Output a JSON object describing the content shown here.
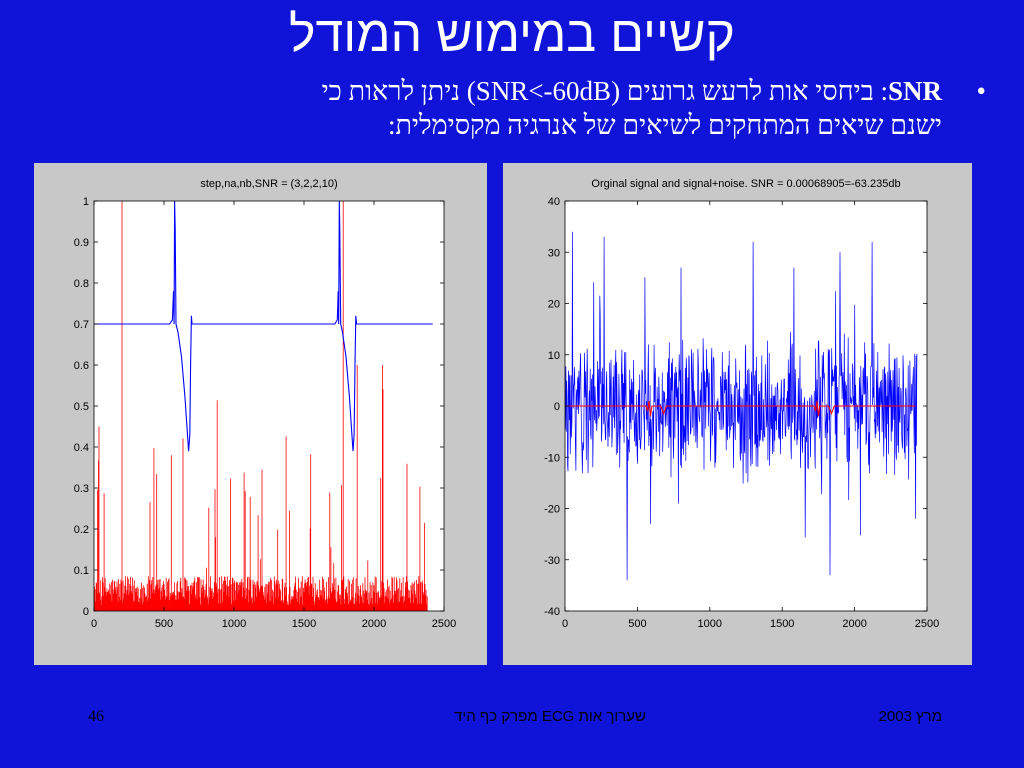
{
  "slide": {
    "title": "קשיים במימוש המודל",
    "bullet": {
      "symbol": "•",
      "term": "SNR",
      "line1_rest": ": ביחסי אות לרעש גרועים (SNR<-60dB) ניתן לראות כי",
      "line2": "ישנם שיאים המתחקים לשיאים של אנרגיה מקסימלית:"
    },
    "footer": {
      "page_number": "46",
      "center_text": "שערוך אות ECG מפרק כף היד",
      "date": "מרץ 2003"
    },
    "colors": {
      "background": "#0f14d8",
      "text": "#ffffff",
      "red": "#ff0000",
      "blue": "#0000ff",
      "panel": "#c8c8c8"
    }
  },
  "chart_data": [
    {
      "type": "line",
      "title": "step,na,nb,SNR = (3,2,2,10)",
      "xlabel": "",
      "ylabel": "",
      "xlim": [
        0,
        2500
      ],
      "ylim": [
        0,
        1
      ],
      "xticks": [
        0,
        500,
        1000,
        1500,
        2000,
        2500
      ],
      "yticks": [
        0,
        0.1,
        0.2,
        0.3,
        0.4,
        0.5,
        0.6,
        0.7,
        0.8,
        0.9,
        1
      ],
      "ytick_labels": [
        "0",
        "0.1",
        "0.2",
        "0.3",
        "0.4",
        "0.5",
        "0.6",
        "0.7",
        "0.8",
        "0.9",
        "1"
      ],
      "grid": false,
      "series": [
        {
          "style": "stem",
          "color": "#ff0000",
          "x_range": [
            0,
            2380
          ],
          "spikes": [
            {
              "x": 200,
              "y": 1.0
            },
            {
              "x": 550,
              "y": 0.38
            },
            {
              "x": 1780,
              "y": 1.0
            },
            {
              "x": 1880,
              "y": 0.6
            },
            {
              "x": 2060,
              "y": 0.6
            }
          ],
          "baseline_level": 0.05
        },
        {
          "style": "line",
          "color": "#0000ff",
          "points": [
            [
              0,
              0.7
            ],
            [
              540,
              0.7
            ],
            [
              560,
              0.71
            ],
            [
              568,
              0.78
            ],
            [
              572,
              0.7
            ],
            [
              576,
              1.0
            ],
            [
              580,
              0.93
            ],
            [
              586,
              0.7
            ],
            [
              600,
              0.68
            ],
            [
              625,
              0.62
            ],
            [
              650,
              0.52
            ],
            [
              668,
              0.43
            ],
            [
              676,
              0.39
            ],
            [
              684,
              0.43
            ],
            [
              690,
              0.6
            ],
            [
              696,
              0.72
            ],
            [
              700,
              0.7
            ],
            [
              1720,
              0.7
            ],
            [
              1738,
              0.71
            ],
            [
              1744,
              0.78
            ],
            [
              1748,
              0.7
            ],
            [
              1752,
              1.0
            ],
            [
              1756,
              0.93
            ],
            [
              1762,
              0.7
            ],
            [
              1775,
              0.68
            ],
            [
              1800,
              0.62
            ],
            [
              1825,
              0.52
            ],
            [
              1842,
              0.43
            ],
            [
              1850,
              0.39
            ],
            [
              1858,
              0.43
            ],
            [
              1864,
              0.6
            ],
            [
              1870,
              0.72
            ],
            [
              1876,
              0.7
            ],
            [
              2420,
              0.7
            ]
          ]
        }
      ]
    },
    {
      "type": "line",
      "title": "Orginal signal and signal+noise. SNR = 0.00068905=-63.235db",
      "xlabel": "",
      "ylabel": "",
      "xlim": [
        0,
        2500
      ],
      "ylim": [
        -40,
        40
      ],
      "xticks": [
        0,
        500,
        1000,
        1500,
        2000,
        2500
      ],
      "yticks": [
        -40,
        -30,
        -20,
        -10,
        0,
        10,
        20,
        30,
        40
      ],
      "grid": false,
      "series": [
        {
          "style": "noise",
          "color": "#0000ff",
          "x_range": [
            0,
            2430
          ],
          "typical_amplitude": 15,
          "peaks": [
            {
              "x": 50,
              "y": 34
            },
            {
              "x": 270,
              "y": 33
            },
            {
              "x": 430,
              "y": -34
            },
            {
              "x": 800,
              "y": 27
            },
            {
              "x": 1300,
              "y": 32
            },
            {
              "x": 1580,
              "y": 27
            },
            {
              "x": 1830,
              "y": -33
            },
            {
              "x": 1900,
              "y": 30
            },
            {
              "x": 2120,
              "y": 32
            },
            {
              "x": 2420,
              "y": -22
            }
          ]
        },
        {
          "style": "line",
          "color": "#ff0000",
          "points": [
            [
              0,
              0
            ],
            [
              560,
              0
            ],
            [
              570,
              -1
            ],
            [
              580,
              1
            ],
            [
              590,
              -2
            ],
            [
              600,
              0
            ],
            [
              660,
              0
            ],
            [
              680,
              -1.5
            ],
            [
              700,
              0
            ],
            [
              1720,
              0
            ],
            [
              1730,
              -1
            ],
            [
              1740,
              1
            ],
            [
              1750,
              -2
            ],
            [
              1760,
              0
            ],
            [
              1820,
              0
            ],
            [
              1840,
              -1.5
            ],
            [
              1860,
              0
            ],
            [
              2420,
              0
            ]
          ]
        }
      ]
    }
  ]
}
